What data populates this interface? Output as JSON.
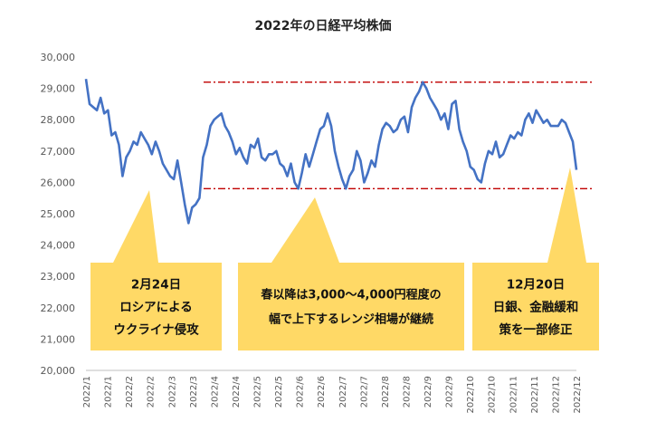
{
  "chart_data": {
    "type": "line",
    "title": "2022年の日経平均株価",
    "xlabel": "",
    "ylabel": "",
    "ylim": [
      20000,
      30000
    ],
    "y_ticks": [
      "20,000",
      "21,000",
      "22,000",
      "23,000",
      "24,000",
      "25,000",
      "26,000",
      "27,000",
      "28,000",
      "29,000",
      "30,000"
    ],
    "x_ticks": [
      "2022/1",
      "2022/1",
      "2022/2",
      "2022/2",
      "2022/3",
      "2022/3",
      "2022/4",
      "2022/4",
      "2022/5",
      "2022/5",
      "2022/6",
      "2022/6",
      "2022/7",
      "2022/7",
      "2022/8",
      "2022/8",
      "2022/9",
      "2022/9",
      "2022/10",
      "2022/10",
      "2022/11",
      "2022/11",
      "2022/12",
      "2022/12"
    ],
    "series": [
      {
        "name": "日経平均株価",
        "values": [
          29300,
          28500,
          28400,
          28300,
          28700,
          28200,
          28300,
          27500,
          27600,
          27200,
          26200,
          26800,
          27000,
          27300,
          27200,
          27600,
          27400,
          27200,
          26900,
          27300,
          27000,
          26600,
          26400,
          26200,
          26100,
          26700,
          26000,
          25300,
          24700,
          25200,
          25300,
          25500,
          26800,
          27200,
          27800,
          28000,
          28100,
          28200,
          27800,
          27600,
          27300,
          26900,
          27100,
          26800,
          26600,
          27200,
          27100,
          27400,
          26800,
          26700,
          26900,
          26900,
          27000,
          26600,
          26500,
          26200,
          26600,
          26000,
          25800,
          26300,
          26900,
          26500,
          26900,
          27300,
          27700,
          27800,
          28200,
          27800,
          27000,
          26500,
          26100,
          25800,
          26200,
          26400,
          27000,
          26700,
          26000,
          26300,
          26700,
          26500,
          27200,
          27700,
          27900,
          27800,
          27600,
          27700,
          28000,
          28100,
          27600,
          28400,
          28700,
          28900,
          29200,
          29000,
          28700,
          28500,
          28300,
          28000,
          28200,
          27700,
          28500,
          28600,
          27700,
          27300,
          27000,
          26500,
          26400,
          26100,
          26000,
          26600,
          27000,
          26900,
          27300,
          26800,
          26900,
          27200,
          27500,
          27400,
          27600,
          27500,
          28000,
          28200,
          27900,
          28300,
          28100,
          27900,
          28000,
          27800,
          27800,
          27800,
          28000,
          27900,
          27600,
          27300,
          26400
        ]
      }
    ],
    "reference_lines": [
      {
        "label": "upper-range",
        "value": 29200,
        "color": "#c00000"
      },
      {
        "label": "lower-range",
        "value": 25800,
        "color": "#c00000"
      }
    ],
    "annotations": [
      {
        "id": "ann1",
        "lines": [
          "2月24日",
          "ロシアによる",
          "ウクライナ侵攻"
        ]
      },
      {
        "id": "ann2",
        "lines": [
          "春以降は3,000～4,000円程度の",
          "幅で上下するレンジ相場が継続"
        ]
      },
      {
        "id": "ann3",
        "lines": [
          "12月20日",
          "日銀、金融緩和",
          "策を一部修正"
        ]
      }
    ],
    "colors": {
      "line": "#4472c4",
      "callout": "#ffd966",
      "reference": "#c00000"
    }
  }
}
